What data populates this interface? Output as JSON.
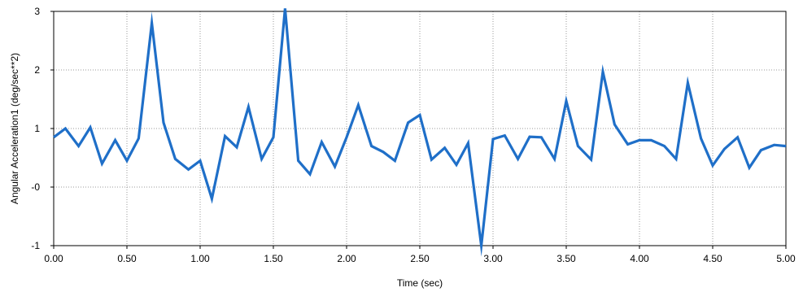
{
  "chart_data": {
    "type": "line",
    "title": "",
    "xlabel": "Time (sec)",
    "ylabel": "Angular Acceleration1  (deg/sec**2)",
    "xlim": [
      0,
      5
    ],
    "ylim": [
      -1,
      3
    ],
    "x_ticks": [
      0,
      0.5,
      1,
      1.5,
      2,
      2.5,
      3,
      3.5,
      4,
      4.5,
      5
    ],
    "x_tick_labels": [
      "0.00",
      "0.50",
      "1.00",
      "1.50",
      "2.00",
      "2.50",
      "3.00",
      "3.50",
      "4.00",
      "4.50",
      "5.00"
    ],
    "y_ticks": [
      -1,
      0,
      1,
      2,
      3
    ],
    "y_tick_labels": [
      "-1",
      "-0",
      "1",
      "2",
      "3"
    ],
    "grid": true,
    "line_color": "#1f6fc8",
    "series": [
      {
        "x": [
          0.0,
          0.08,
          0.17,
          0.25,
          0.33,
          0.42,
          0.5,
          0.58,
          0.67,
          0.75,
          0.83,
          0.92,
          1.0,
          1.08,
          1.17,
          1.25,
          1.33,
          1.42,
          1.5,
          1.58,
          1.67,
          1.75,
          1.83,
          1.92,
          2.0,
          2.08,
          2.17,
          2.25,
          2.33,
          2.42,
          2.5,
          2.58,
          2.67,
          2.75,
          2.83,
          2.92,
          3.0,
          3.08,
          3.17,
          3.25,
          3.33,
          3.42,
          3.5,
          3.58,
          3.67,
          3.75,
          3.83,
          3.92,
          4.0,
          4.08,
          4.17,
          4.25,
          4.33,
          4.42,
          4.5,
          4.58,
          4.67,
          4.75,
          4.83,
          4.92,
          5.0
        ],
        "y": [
          0.85,
          1.0,
          0.7,
          1.02,
          0.4,
          0.8,
          0.45,
          0.83,
          2.8,
          1.1,
          0.48,
          0.3,
          0.45,
          -0.2,
          0.87,
          0.68,
          1.37,
          0.48,
          0.85,
          3.05,
          0.45,
          0.22,
          0.77,
          0.35,
          0.85,
          1.4,
          0.7,
          0.6,
          0.45,
          1.1,
          1.23,
          0.47,
          0.67,
          0.38,
          0.75,
          -1.0,
          0.82,
          0.88,
          0.48,
          0.86,
          0.85,
          0.48,
          1.47,
          0.7,
          0.47,
          1.97,
          1.07,
          0.73,
          0.8,
          0.8,
          0.7,
          0.48,
          1.78,
          0.83,
          0.37,
          0.65,
          0.85,
          0.33,
          0.63,
          0.72,
          0.7
        ]
      }
    ]
  }
}
